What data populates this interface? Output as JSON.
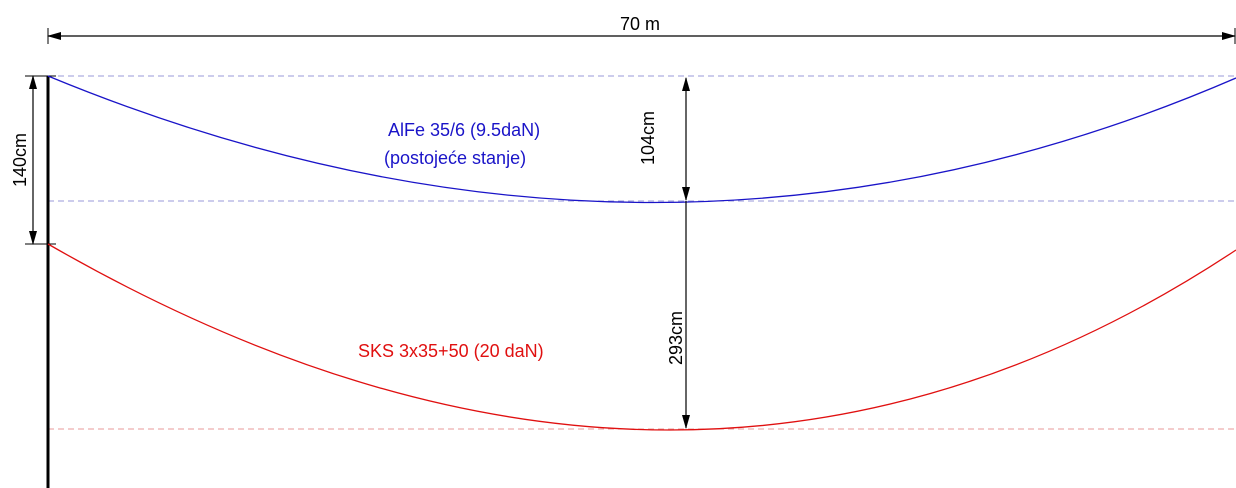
{
  "dimensions": {
    "span": "70 m",
    "pole_offset": "140cm",
    "sag_upper": "104cm",
    "sag_lower": "293cm"
  },
  "conductors": [
    {
      "name": "AlFe 35/6 (9.5daN)",
      "note": "(postojeće stanje)",
      "color": "#1a14c8"
    },
    {
      "name": "SKS 3x35+50 (20 daN)",
      "color": "#e01010"
    }
  ],
  "colors": {
    "dimension_line": "#000000",
    "pole": "#000000",
    "guide_upper": "#9a9ad8",
    "guide_lower": "#e89a9a"
  }
}
